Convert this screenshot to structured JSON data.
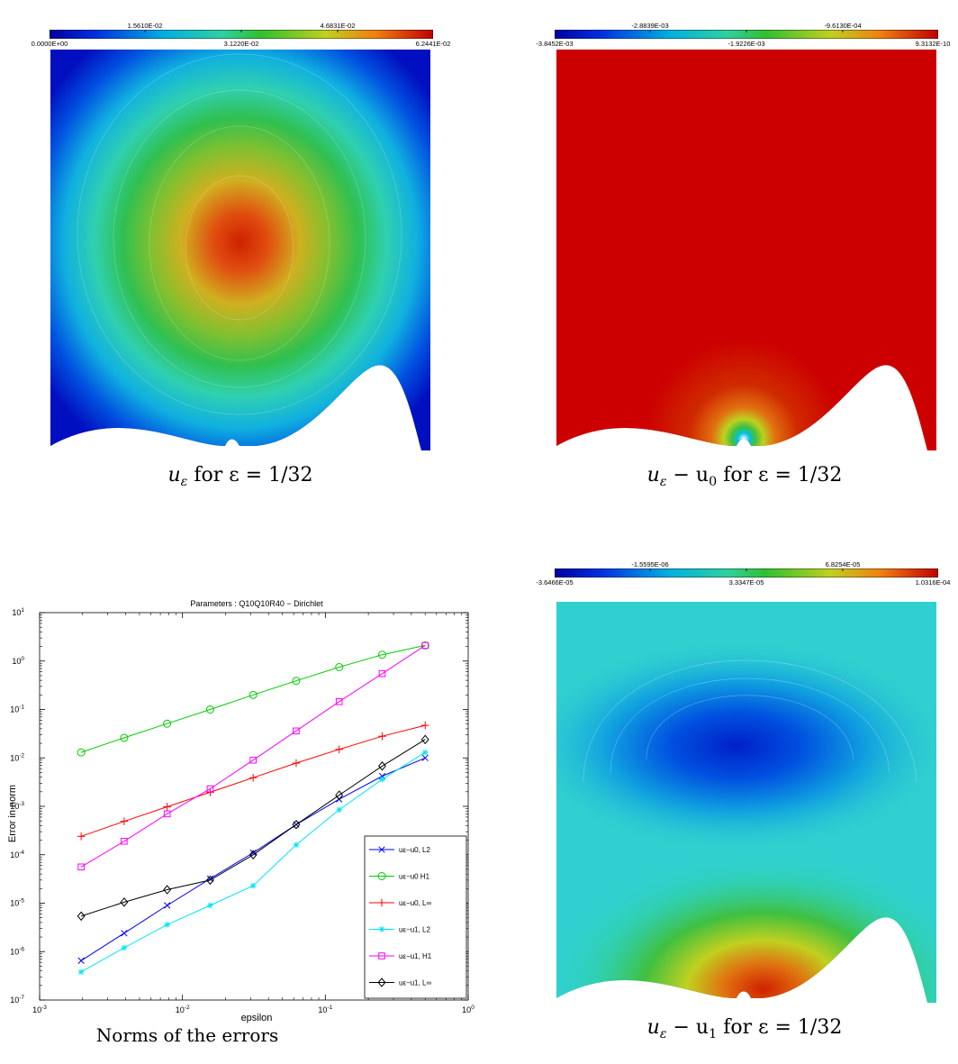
{
  "panels": {
    "top_left": {
      "colorbar_top_labels": [
        "1.5610E-02",
        "4.6831E-02"
      ],
      "colorbar_bottom_labels": [
        "0.0000E+00",
        "3.1220E-02",
        "6.2441E-02"
      ]
    },
    "top_right": {
      "colorbar_top_labels": [
        "-2.8839E-03",
        "-9.6130E-04"
      ],
      "colorbar_bottom_labels": [
        "-3.8452E-03",
        "-1.9226E-03",
        "9.3132E-10"
      ]
    },
    "bottom_right": {
      "colorbar_top_labels": [
        "-1.5595E-06",
        "6.8254E-05"
      ],
      "colorbar_bottom_labels": [
        "-3.6466E-05",
        "3.3347E-05",
        "1.0316E-04"
      ]
    }
  },
  "captions": {
    "top_left": {
      "u": "u",
      "sub": "ε",
      "rest": " for ε = 1/32"
    },
    "top_right": {
      "u": "u",
      "sub": "ε",
      "minus": " − u",
      "sub2": "0",
      "rest": " for ε = 1/32"
    },
    "bottom_right": {
      "u": "u",
      "sub": "ε",
      "minus": " − u",
      "sub2": "1",
      "rest": " for ε = 1/32"
    },
    "bottom_left": "Norms of the errors"
  },
  "chart_data": {
    "type": "line",
    "title": "Parameters : Q10Q10R40 − Dirichlet",
    "xlabel": "epsilon",
    "ylabel": "Error in norm",
    "xscale": "log",
    "yscale": "log",
    "xlim": [
      0.001,
      1
    ],
    "ylim": [
      1e-07,
      10
    ],
    "x_ticks": [
      "10^-3",
      "10^-2",
      "10^-1",
      "10^0"
    ],
    "y_ticks": [
      "10^-7",
      "10^-6",
      "10^-5",
      "10^-4",
      "10^-3",
      "10^-2",
      "10^-1",
      "10^0",
      "10^1"
    ],
    "legend_position": "lower-right",
    "x": [
      0.001953125,
      0.00390625,
      0.0078125,
      0.015625,
      0.03125,
      0.0625,
      0.125,
      0.25,
      0.5
    ],
    "series": [
      {
        "name": "uε−u0, L2",
        "color": "#0000ff",
        "marker": "x",
        "values": [
          6.5e-07,
          2.4e-06,
          9e-06,
          3.2e-05,
          0.00011,
          0.00042,
          0.0014,
          0.0042,
          0.01
        ]
      },
      {
        "name": "uε−u0 H1",
        "color": "#00cc00",
        "marker": "o",
        "values": [
          0.013,
          0.026,
          0.051,
          0.1,
          0.2,
          0.39,
          0.75,
          1.35,
          2.1
        ]
      },
      {
        "name": "uε−u0, L∞",
        "color": "#ff0000",
        "marker": "+",
        "values": [
          0.00024,
          0.00049,
          0.00098,
          0.00195,
          0.0039,
          0.0078,
          0.015,
          0.028,
          0.047
        ]
      },
      {
        "name": "uε−u1, L2",
        "color": "#00e5ee",
        "marker": "*",
        "values": [
          3.8e-07,
          1.2e-06,
          3.6e-06,
          9e-06,
          2.3e-05,
          0.00016,
          0.00085,
          0.0036,
          0.013
        ]
      },
      {
        "name": "uε−u1, H1",
        "color": "#ff00ff",
        "marker": "s",
        "values": [
          5.6e-05,
          0.00019,
          0.0007,
          0.0023,
          0.009,
          0.036,
          0.145,
          0.55,
          2.1
        ]
      },
      {
        "name": "uε−u1, L∞",
        "color": "#000000",
        "marker": "d",
        "values": [
          5.4e-06,
          1.05e-05,
          1.9e-05,
          3e-05,
          0.0001,
          0.00042,
          0.0017,
          0.0068,
          0.024
        ]
      }
    ]
  }
}
